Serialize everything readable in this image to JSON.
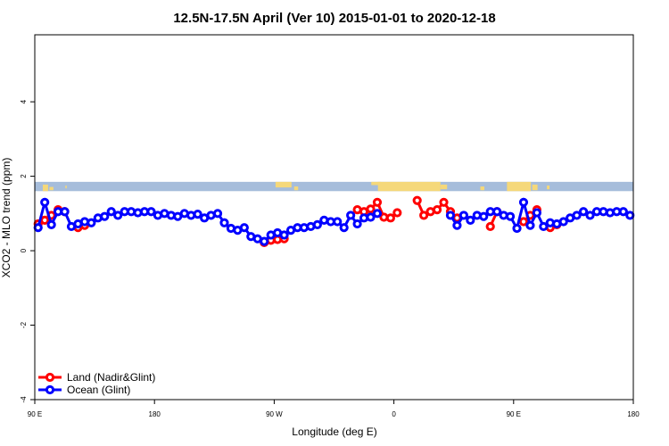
{
  "chart_data": {
    "type": "line",
    "title": "12.5N-17.5N April (Ver 10)   2015-01-01 to 2020-12-18",
    "xlabel": "Longitude (deg E)",
    "ylabel": "XCO2 - MLO trend (ppm)",
    "xlim": [
      90,
      540
    ],
    "ylim": [
      -4,
      5.8
    ],
    "x_ticks": [
      {
        "value": 90,
        "label": "90 E"
      },
      {
        "value": 180,
        "label": "180"
      },
      {
        "value": 270,
        "label": "90 W"
      },
      {
        "value": 360,
        "label": "0"
      },
      {
        "value": 450,
        "label": "90 E"
      },
      {
        "value": 540,
        "label": "180"
      }
    ],
    "y_ticks": [
      {
        "value": -4,
        "label": "-4"
      },
      {
        "value": -2,
        "label": "-2"
      },
      {
        "value": 0,
        "label": "0"
      },
      {
        "value": 2,
        "label": "2"
      },
      {
        "value": 4,
        "label": "4"
      }
    ],
    "land_band": {
      "y_range": [
        1.6,
        1.85
      ],
      "ocean_color": "#a6bddb",
      "land_color": "#f5d87a"
    },
    "legend": {
      "position": "bottom-left",
      "entries": [
        {
          "label": "Land (Nadir&Glint)",
          "color": "#ff0000"
        },
        {
          "label": "Ocean (Glint)",
          "color": "#0000ff"
        }
      ]
    },
    "series": [
      {
        "name": "Land (Nadir&Glint)",
        "color": "#ff0000",
        "segments": [
          [
            [
              92.5,
              0.72
            ],
            [
              97.5,
              0.82
            ],
            [
              102.5,
              0.95
            ],
            [
              107.5,
              1.1
            ],
            [
              112.5,
              1.05
            ]
          ],
          [
            [
              122.5,
              0.62
            ],
            [
              127.5,
              0.68
            ]
          ],
          [
            [
              262.5,
              0.22
            ],
            [
              267.5,
              0.28
            ],
            [
              272.5,
              0.3
            ],
            [
              277.5,
              0.32
            ]
          ],
          [
            [
              332.5,
              1.1
            ],
            [
              337.5,
              1.05
            ],
            [
              342.5,
              1.12
            ],
            [
              347.5,
              1.3
            ],
            [
              352.5,
              0.9
            ],
            [
              357.5,
              0.88
            ],
            [
              362.5,
              1.02
            ]
          ],
          [
            [
              377.5,
              1.35
            ],
            [
              382.5,
              0.95
            ],
            [
              387.5,
              1.05
            ],
            [
              392.5,
              1.1
            ],
            [
              397.5,
              1.3
            ],
            [
              402.5,
              1.05
            ],
            [
              407.5,
              0.88
            ]
          ],
          [
            [
              432.5,
              0.65
            ],
            [
              437.5,
              1.05
            ]
          ],
          [
            [
              457.5,
              0.78
            ],
            [
              462.5,
              0.95
            ],
            [
              467.5,
              1.1
            ]
          ],
          [
            [
              477.5,
              0.62
            ],
            [
              482.5,
              0.7
            ]
          ]
        ]
      },
      {
        "name": "Ocean (Glint)",
        "color": "#0000ff",
        "points": [
          [
            92.5,
            0.62
          ],
          [
            97.5,
            1.3
          ],
          [
            102.5,
            0.7
          ],
          [
            107.5,
            1.05
          ],
          [
            112.5,
            1.05
          ],
          [
            117.5,
            0.65
          ],
          [
            122.5,
            0.72
          ],
          [
            127.5,
            0.78
          ],
          [
            132.5,
            0.75
          ],
          [
            137.5,
            0.88
          ],
          [
            142.5,
            0.92
          ],
          [
            147.5,
            1.05
          ],
          [
            152.5,
            0.95
          ],
          [
            157.5,
            1.05
          ],
          [
            162.5,
            1.05
          ],
          [
            167.5,
            1.02
          ],
          [
            172.5,
            1.05
          ],
          [
            177.5,
            1.05
          ],
          [
            182.5,
            0.95
          ],
          [
            187.5,
            1.0
          ],
          [
            192.5,
            0.95
          ],
          [
            197.5,
            0.92
          ],
          [
            202.5,
            1.0
          ],
          [
            207.5,
            0.95
          ],
          [
            212.5,
            0.98
          ],
          [
            217.5,
            0.88
          ],
          [
            222.5,
            0.95
          ],
          [
            227.5,
            1.0
          ],
          [
            232.5,
            0.75
          ],
          [
            237.5,
            0.6
          ],
          [
            242.5,
            0.55
          ],
          [
            247.5,
            0.62
          ],
          [
            252.5,
            0.38
          ],
          [
            257.5,
            0.32
          ],
          [
            262.5,
            0.25
          ],
          [
            267.5,
            0.42
          ],
          [
            272.5,
            0.48
          ],
          [
            277.5,
            0.42
          ],
          [
            282.5,
            0.55
          ],
          [
            287.5,
            0.62
          ],
          [
            292.5,
            0.62
          ],
          [
            297.5,
            0.65
          ],
          [
            302.5,
            0.7
          ],
          [
            307.5,
            0.82
          ],
          [
            312.5,
            0.78
          ],
          [
            317.5,
            0.78
          ],
          [
            322.5,
            0.62
          ],
          [
            327.5,
            0.95
          ],
          [
            332.5,
            0.72
          ],
          [
            337.5,
            0.88
          ],
          [
            342.5,
            0.9
          ],
          [
            347.5,
            1.0
          ],
          [
            402.5,
            0.95
          ],
          [
            407.5,
            0.68
          ],
          [
            412.5,
            0.95
          ],
          [
            417.5,
            0.82
          ],
          [
            422.5,
            0.95
          ],
          [
            427.5,
            0.92
          ],
          [
            432.5,
            1.05
          ],
          [
            437.5,
            1.05
          ],
          [
            442.5,
            0.95
          ],
          [
            447.5,
            0.92
          ],
          [
            452.5,
            0.6
          ],
          [
            457.5,
            1.3
          ],
          [
            462.5,
            0.68
          ],
          [
            467.5,
            1.02
          ],
          [
            472.5,
            0.65
          ],
          [
            477.5,
            0.75
          ],
          [
            482.5,
            0.72
          ],
          [
            487.5,
            0.78
          ],
          [
            492.5,
            0.88
          ],
          [
            497.5,
            0.95
          ],
          [
            502.5,
            1.05
          ],
          [
            507.5,
            0.95
          ],
          [
            512.5,
            1.05
          ],
          [
            517.5,
            1.05
          ],
          [
            522.5,
            1.02
          ],
          [
            527.5,
            1.05
          ],
          [
            532.5,
            1.05
          ],
          [
            537.5,
            0.95
          ]
        ]
      }
    ]
  }
}
